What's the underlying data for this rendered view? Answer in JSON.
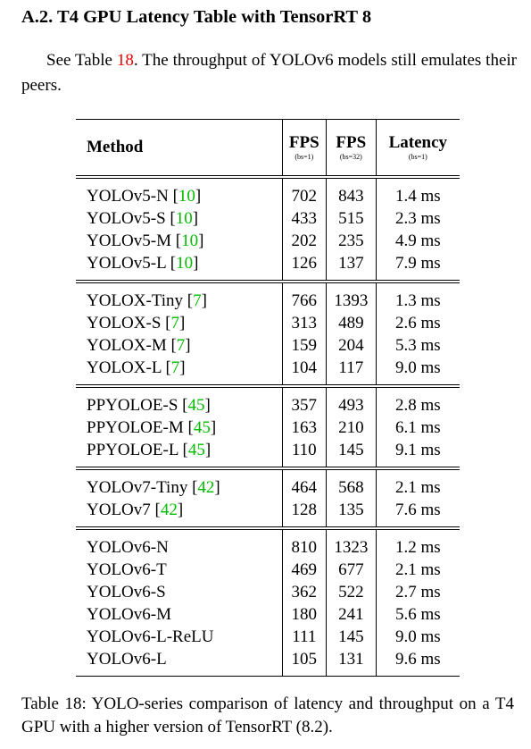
{
  "section": {
    "title": "A.2. T4 GPU Latency Table with TensorRT 8"
  },
  "paragraph": {
    "before": "See Table ",
    "ref": "18",
    "after": ". The throughput of YOLOv6 models still emulates their peers."
  },
  "table": {
    "header": [
      {
        "label": "Method",
        "sub": null
      },
      {
        "label": "FPS",
        "sub": "(bs=1)"
      },
      {
        "label": "FPS",
        "sub": "(bs=32)"
      },
      {
        "label": "Latency",
        "sub": "(bs=1)"
      }
    ],
    "groups": [
      [
        {
          "method": "YOLOv5-N",
          "cite": "[10]",
          "fps1": 702,
          "fps32": 843,
          "latency": "1.4 ms"
        },
        {
          "method": "YOLOv5-S",
          "cite": "[10]",
          "fps1": 433,
          "fps32": 515,
          "latency": "2.3 ms"
        },
        {
          "method": "YOLOv5-M",
          "cite": "[10]",
          "fps1": 202,
          "fps32": 235,
          "latency": "4.9 ms"
        },
        {
          "method": "YOLOv5-L",
          "cite": "[10]",
          "fps1": 126,
          "fps32": 137,
          "latency": "7.9 ms"
        }
      ],
      [
        {
          "method": "YOLOX-Tiny",
          "cite": "[7]",
          "fps1": 766,
          "fps32": 1393,
          "latency": "1.3 ms"
        },
        {
          "method": "YOLOX-S",
          "cite": "[7]",
          "fps1": 313,
          "fps32": 489,
          "latency": "2.6 ms"
        },
        {
          "method": "YOLOX-M",
          "cite": "[7]",
          "fps1": 159,
          "fps32": 204,
          "latency": "5.3 ms"
        },
        {
          "method": "YOLOX-L",
          "cite": "[7]",
          "fps1": 104,
          "fps32": 117,
          "latency": "9.0 ms"
        }
      ],
      [
        {
          "method": "PPYOLOE-S",
          "cite": "[45]",
          "fps1": 357,
          "fps32": 493,
          "latency": "2.8 ms"
        },
        {
          "method": "PPYOLOE-M",
          "cite": "[45]",
          "fps1": 163,
          "fps32": 210,
          "latency": "6.1 ms"
        },
        {
          "method": "PPYOLOE-L",
          "cite": "[45]",
          "fps1": 110,
          "fps32": 145,
          "latency": "9.1 ms"
        }
      ],
      [
        {
          "method": "YOLOv7-Tiny",
          "cite": "[42]",
          "fps1": 464,
          "fps32": 568,
          "latency": "2.1 ms"
        },
        {
          "method": "YOLOv7",
          "cite": "[42]",
          "fps1": 128,
          "fps32": 135,
          "latency": "7.6 ms"
        }
      ],
      [
        {
          "method": "YOLOv6-N",
          "cite": null,
          "fps1": 810,
          "fps32": 1323,
          "latency": "1.2 ms"
        },
        {
          "method": "YOLOv6-T",
          "cite": null,
          "fps1": 469,
          "fps32": 677,
          "latency": "2.1 ms"
        },
        {
          "method": "YOLOv6-S",
          "cite": null,
          "fps1": 362,
          "fps32": 522,
          "latency": "2.7 ms"
        },
        {
          "method": "YOLOv6-M",
          "cite": null,
          "fps1": 180,
          "fps32": 241,
          "latency": "5.6 ms"
        },
        {
          "method": "YOLOv6-L-ReLU",
          "cite": null,
          "fps1": 111,
          "fps32": 145,
          "latency": "9.0 ms"
        },
        {
          "method": "YOLOv6-L",
          "cite": null,
          "fps1": 105,
          "fps32": 131,
          "latency": "9.6 ms"
        }
      ]
    ]
  },
  "caption": "Table 18: YOLO-series comparison of latency and throughput on a T4 GPU with a higher version of TensorRT (8.2)."
}
